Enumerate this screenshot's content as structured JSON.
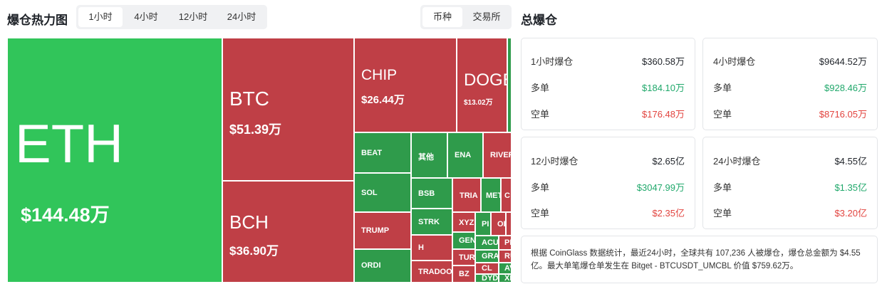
{
  "header": {
    "title": "爆仓热力图",
    "time_tabs": [
      "1小时",
      "4小时",
      "12小时",
      "24小时"
    ],
    "active_time_tab": "1小时",
    "view_tabs": [
      "币种",
      "交易所"
    ],
    "active_view_tab": "币种"
  },
  "heatmap": {
    "eth": {
      "symbol": "ETH",
      "value": "$144.48万"
    },
    "btc": {
      "symbol": "BTC",
      "value": "$51.39万"
    },
    "bch": {
      "symbol": "BCH",
      "value": "$36.90万"
    },
    "chip": {
      "symbol": "CHIP",
      "value": "$26.44万"
    },
    "doge": {
      "symbol": "DOGE",
      "value": "$13.02万"
    },
    "small": [
      "BEAT",
      "其他",
      "ENA",
      "RIVER",
      "SOL",
      "BSB",
      "TRIA",
      "MET",
      "C",
      "TRUMP",
      "STRK",
      "XYZ",
      "PI",
      "OI",
      "H",
      "GEN",
      "ACU",
      "PE",
      "ORDI",
      "TUR",
      "GRA",
      "RU",
      "TRADOOR",
      "BZ",
      "CL",
      "AV",
      "DYD",
      "XP"
    ]
  },
  "totals": {
    "title": "总爆仓",
    "cards": [
      {
        "label": "1小时爆仓",
        "total": "$360.58万",
        "long_label": "多单",
        "long": "$184.10万",
        "short_label": "空单",
        "short": "$176.48万"
      },
      {
        "label": "4小时爆仓",
        "total": "$9644.52万",
        "long_label": "多单",
        "long": "$928.46万",
        "short_label": "空单",
        "short": "$8716.05万"
      },
      {
        "label": "12小时爆仓",
        "total": "$2.65亿",
        "long_label": "多单",
        "long": "$3047.99万",
        "short_label": "空单",
        "short": "$2.35亿"
      },
      {
        "label": "24小时爆仓",
        "total": "$4.55亿",
        "long_label": "多单",
        "long": "$1.35亿",
        "short_label": "空单",
        "short": "$3.20亿"
      }
    ],
    "summary": "根据 CoinGlass 数据统计，最近24小时，全球共有 107,236 人被爆仓，爆仓总金额为 $4.55 亿。最大单笔爆仓单发生在 Bitget - BTCUSDT_UMCBL 价值 $759.62万。"
  },
  "colors": {
    "long_green": "#20a86b",
    "short_red": "#e2443f",
    "heat_green": "#31c55a",
    "heat_dark_green": "#2f9b4b",
    "heat_red": "#bf3f46"
  }
}
